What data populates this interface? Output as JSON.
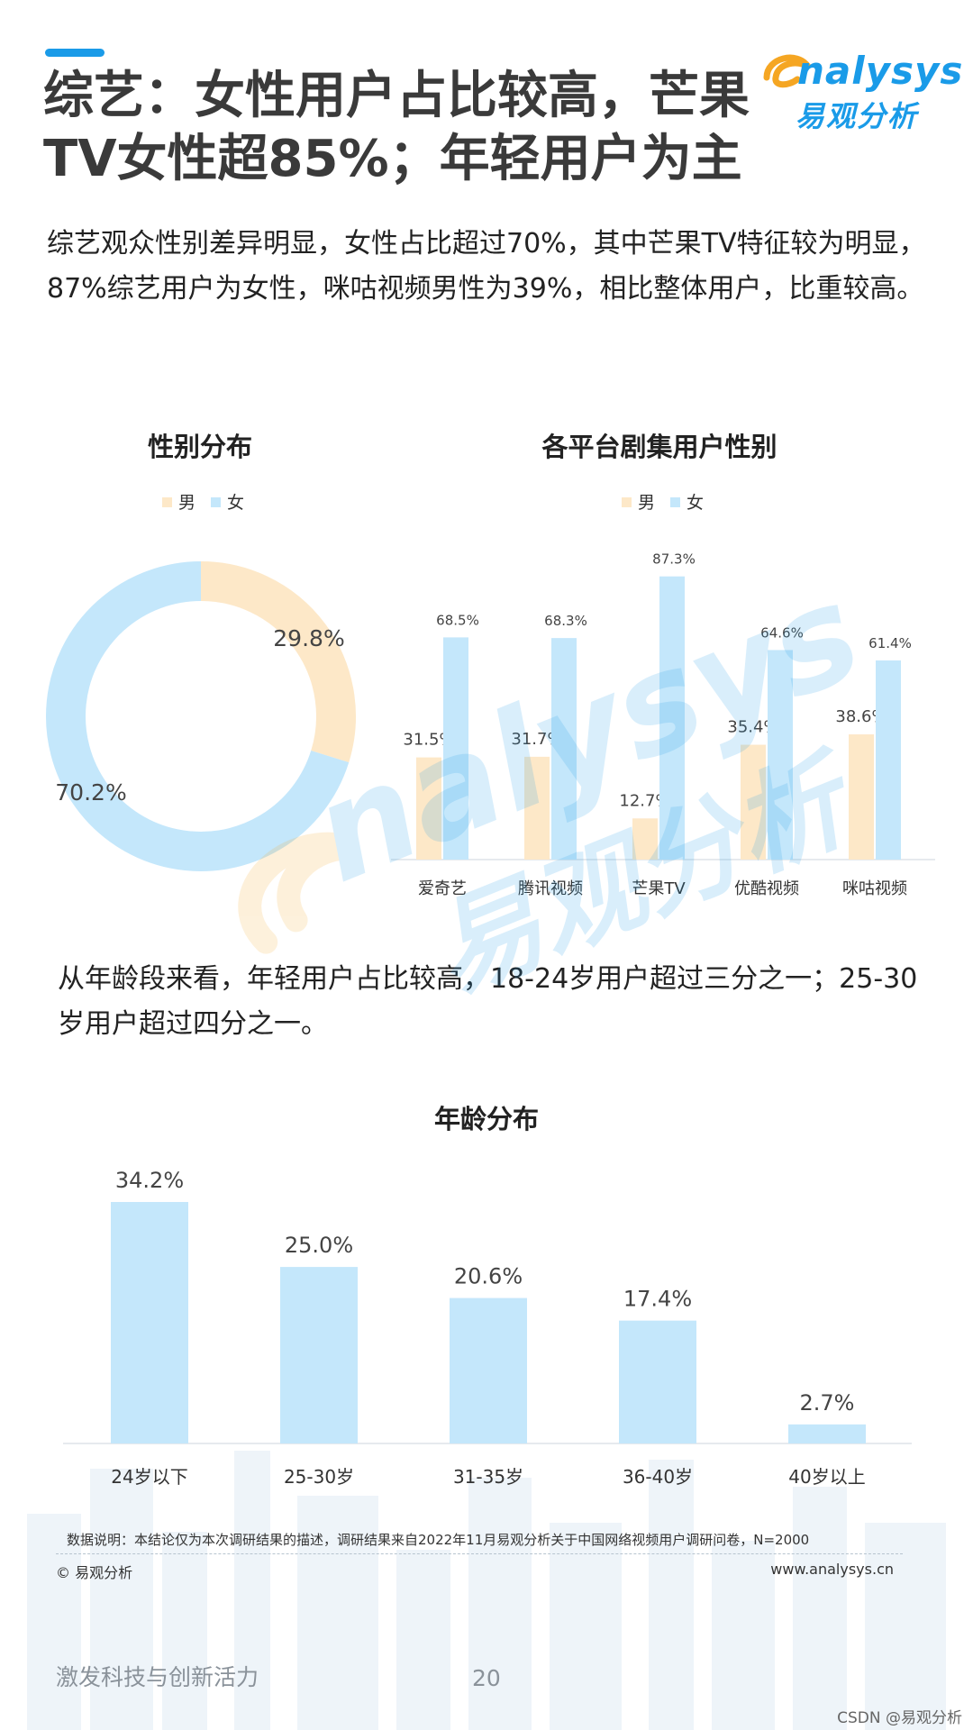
{
  "header": {
    "title_line1": "综艺：女性用户占比较高，芒果",
    "title_line2": "TV女性超85%；年轻用户为主",
    "logo_en": "nalysys",
    "logo_cn": "易观分析"
  },
  "paragraphs": {
    "gender": "综艺观众性别差异明显，女性占比超过70%，其中芒果TV特征较为明显，87%综艺用户为女性，咪咕视频男性为39%，相比整体用户，比重较高。",
    "age": "从年龄段来看，年轻用户占比较高，18-24岁用户超过三分之一；25-30岁用户超过四分之一。"
  },
  "colors": {
    "male": "#fde8c8",
    "female": "#c4e7fb",
    "accent": "#1a9be8"
  },
  "chart_data": [
    {
      "type": "pie",
      "title": "性别分布",
      "legend": [
        "男",
        "女"
      ],
      "legend_position": "top",
      "slices": [
        {
          "label": "男",
          "value": 29.8,
          "display": "29.8%"
        },
        {
          "label": "女",
          "value": 70.2,
          "display": "70.2%"
        }
      ]
    },
    {
      "type": "bar",
      "title": "各平台剧集用户性别",
      "legend": [
        "男",
        "女"
      ],
      "legend_position": "top",
      "categories": [
        "爱奇艺",
        "腾讯视频",
        "芒果TV",
        "优酷视频",
        "咪咕视频"
      ],
      "series": [
        {
          "name": "男",
          "values": [
            31.5,
            31.7,
            12.7,
            35.4,
            38.6
          ],
          "labels": [
            "31.5%",
            "31.7%",
            "12.7%",
            "35.4%",
            "38.6%"
          ]
        },
        {
          "name": "女",
          "values": [
            68.5,
            68.3,
            87.3,
            64.6,
            61.4
          ],
          "labels": [
            "68.5%",
            "68.3%",
            "87.3%",
            "64.6%",
            "61.4%"
          ]
        }
      ],
      "ylim": [
        0,
        100
      ]
    },
    {
      "type": "bar",
      "title": "年龄分布",
      "categories": [
        "24岁以下",
        "25-30岁",
        "31-35岁",
        "36-40岁",
        "40岁以上"
      ],
      "values": [
        34.2,
        25.0,
        20.6,
        17.4,
        2.7
      ],
      "labels": [
        "34.2%",
        "25.0%",
        "20.6%",
        "17.4%",
        "2.7%"
      ],
      "ylim": [
        0,
        35
      ]
    }
  ],
  "footer": {
    "note": "数据说明：本结论仅为本次调研结果的描述，调研结果来自2022年11月易观分析关于中国网络视频用户调研问卷，N=2000",
    "copyright": "© 易观分析",
    "website": "www.analysys.cn",
    "slogan": "激发科技与创新活力",
    "page_number": "20",
    "csdn": "CSDN @易观分析"
  }
}
